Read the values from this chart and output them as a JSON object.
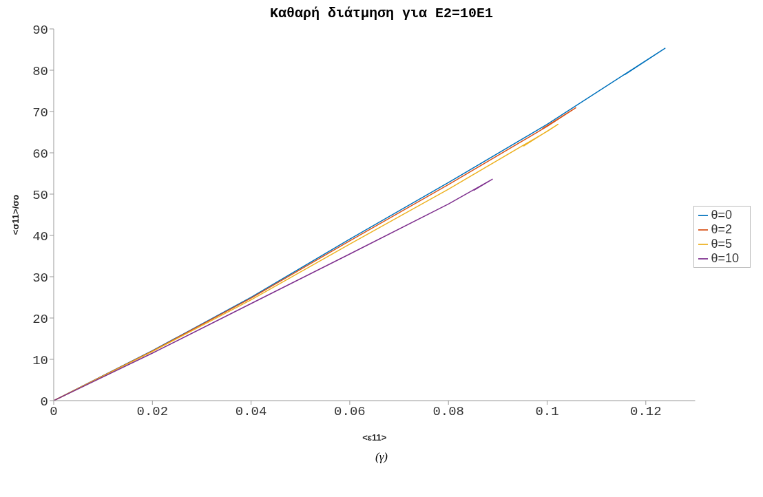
{
  "chart_data": {
    "type": "line",
    "title": "Καθαρή διάτμηση για E2=10E1",
    "xlabel": "<ε11>",
    "ylabel": "<σ11>/σο",
    "annotations": [
      "(γ)"
    ],
    "xlim": [
      0,
      0.13
    ],
    "xticks": [
      0,
      0.02,
      0.04,
      0.06,
      0.08,
      0.1,
      0.12
    ],
    "ylim": [
      0,
      90
    ],
    "yticks": [
      0,
      10,
      20,
      30,
      40,
      50,
      60,
      70,
      80,
      90
    ],
    "grid": false,
    "legend": "right",
    "marker": "none",
    "line_style": "solid",
    "series": [
      {
        "name": "θ=0",
        "color": "#0072bd",
        "x": [
          0,
          0.02,
          0.04,
          0.06,
          0.08,
          0.1,
          0.12,
          0.1239,
          0.1157
        ],
        "values": [
          0,
          12.1,
          25.0,
          39.1,
          52.8,
          66.9,
          82.3,
          85.3,
          78.9
        ]
      },
      {
        "name": "θ=2",
        "color": "#d95319",
        "x": [
          0,
          0.02,
          0.04,
          0.06,
          0.08,
          0.1,
          0.1058,
          0.099
        ],
        "values": [
          0,
          12.0,
          24.8,
          38.7,
          52.3,
          66.4,
          70.9,
          65.8
        ]
      },
      {
        "name": "θ=5",
        "color": "#edb120",
        "x": [
          0,
          0.02,
          0.04,
          0.06,
          0.08,
          0.1,
          0.1022,
          0.0952
        ],
        "values": [
          0,
          11.9,
          24.4,
          37.9,
          51.2,
          65.2,
          66.9,
          61.6
        ]
      },
      {
        "name": "θ=10",
        "color": "#7e2f8e",
        "x": [
          0,
          0.02,
          0.04,
          0.06,
          0.08,
          0.0889,
          0.0851
        ],
        "values": [
          0,
          11.5,
          23.5,
          35.5,
          47.6,
          53.6,
          50.9
        ]
      }
    ]
  }
}
